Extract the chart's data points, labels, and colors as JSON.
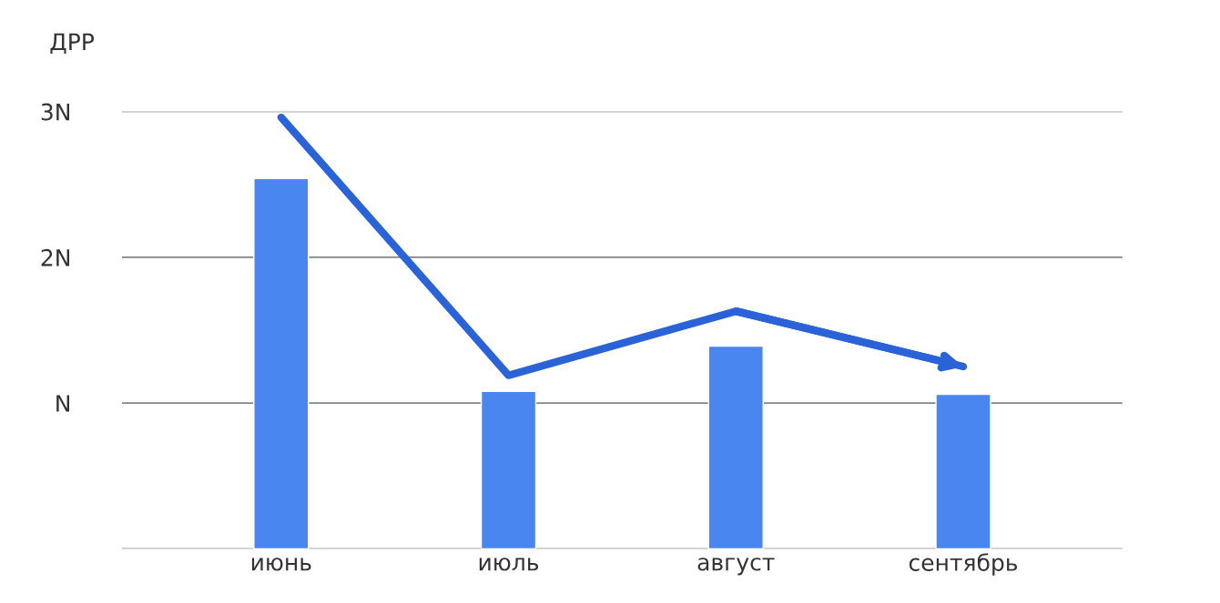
{
  "chart_data": {
    "type": "bar",
    "ylabel": "ДРР",
    "categories": [
      "июнь",
      "июль",
      "август",
      "сентябрь"
    ],
    "series": [
      {
        "color": "#4a86f0",
        "values": [
          2.54,
          1.08,
          1.39,
          1.06
        ]
      },
      {
        "type": "line",
        "color": "#2a62d8",
        "values": [
          2.96,
          1.19,
          1.63,
          1.25
        ],
        "marker": "none",
        "line_style": "solid"
      }
    ],
    "ylim": [
      0,
      3
    ],
    "yticks": [
      {
        "value": 0,
        "label": null
      },
      {
        "value": 1,
        "label": "N"
      },
      {
        "value": 2,
        "label": "2N"
      },
      {
        "value": 3,
        "label": "3N"
      }
    ],
    "grid": "y",
    "legend": false
  }
}
